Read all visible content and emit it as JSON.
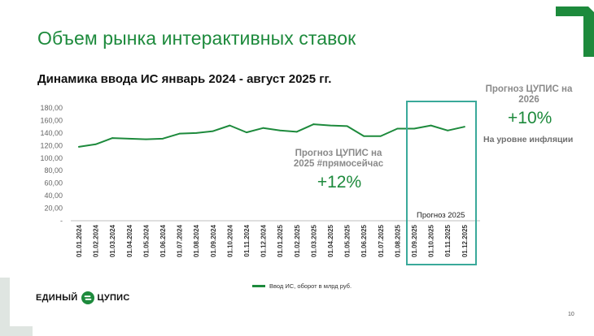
{
  "slide": {
    "title": "Объем рынка интерактивных ставок",
    "subtitle": "Динамика ввода ИС январь 2024 - август 2025 гг.",
    "page_number": "10",
    "brand_color": "#1d8a3c",
    "forecast_box_color": "#3aa99a"
  },
  "annotations": {
    "forecast_2026": {
      "title": "Прогноз ЦУПИС на 2026",
      "value": "+10%",
      "subtitle": "На уровне инфляции"
    },
    "forecast_2025": {
      "title": "Прогноз ЦУПИС на 2025 #прямосейчас",
      "value": "+12%"
    },
    "forecast_box_label": "Прогноз 2025"
  },
  "logo": {
    "text_left": "ЕДИНЫЙ",
    "text_right": "ЦУПИС",
    "icon": "cupis-logo-icon"
  },
  "chart_data": {
    "type": "line",
    "categories": [
      "01.01.2024",
      "01.02.2024",
      "01.03.2024",
      "01.04.2024",
      "01.05.2024",
      "01.06.2024",
      "01.07.2024",
      "01.08.2024",
      "01.09.2024",
      "01.10.2024",
      "01.11.2024",
      "01.12.2024",
      "01.01.2025",
      "01.02.2025",
      "01.03.2025",
      "01.04.2025",
      "01.05.2025",
      "01.06.2025",
      "01.07.2025",
      "01.08.2025",
      "01.09.2025",
      "01.10.2025",
      "01.11.2025",
      "01.12.2025"
    ],
    "series": [
      {
        "name": "Ввод ИС, оборот в млрд руб.",
        "color": "#1d8a3c",
        "values": [
          118,
          122,
          132,
          131,
          130,
          131,
          139,
          140,
          143,
          152,
          141,
          148,
          144,
          142,
          154,
          152,
          151,
          135,
          135,
          147,
          147,
          152,
          144,
          150
        ]
      }
    ],
    "y_ticks": [
      "-",
      "20,00",
      "40,00",
      "60,00",
      "80,00",
      "100,00",
      "120,00",
      "140,00",
      "160,00",
      "180,00"
    ],
    "ylim": [
      0,
      180
    ],
    "grid": false,
    "legend_position": "bottom"
  }
}
